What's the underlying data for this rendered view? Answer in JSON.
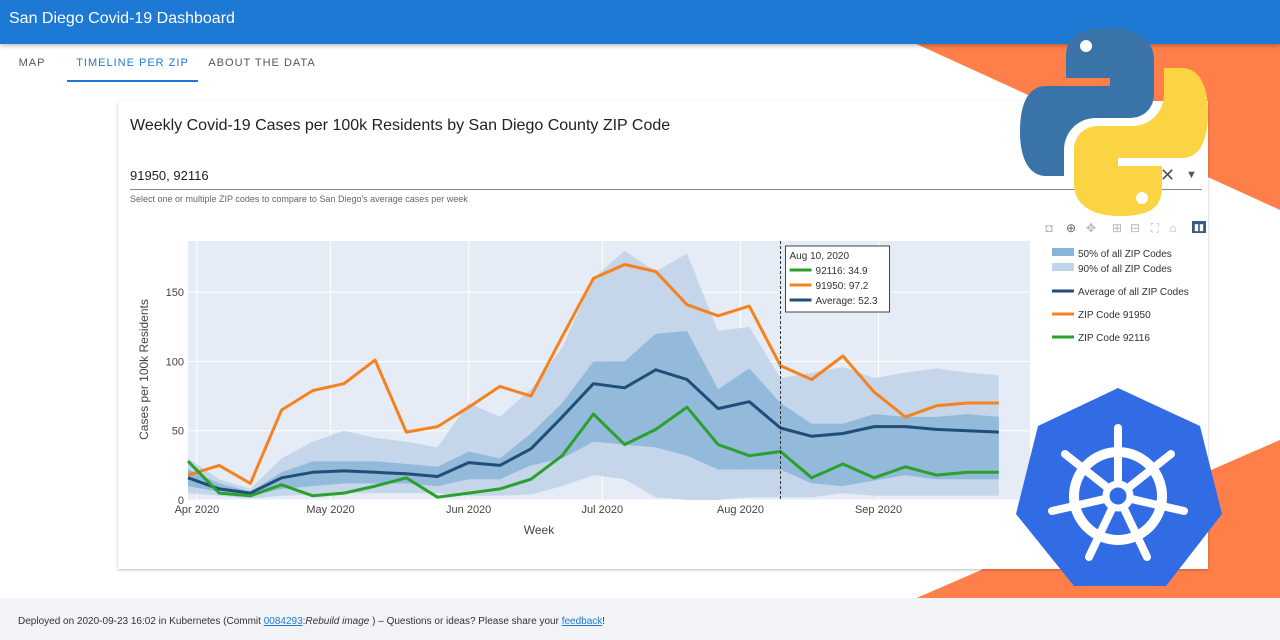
{
  "app": {
    "title": "San Diego Covid-19 Dashboard"
  },
  "tabs": [
    {
      "label": "MAP",
      "active": false
    },
    {
      "label": "TIMELINE PER ZIP",
      "active": true
    },
    {
      "label": "ABOUT THE DATA",
      "active": false
    }
  ],
  "card": {
    "title": "Weekly Covid-19 Cases per 100k Residents by San Diego County ZIP Code",
    "zip_select": {
      "value": "91950, 92116",
      "helper": "Select one or multiple ZIP codes to compare to San Diego's average cases per week"
    }
  },
  "modebar_icons": [
    "camera-icon",
    "zoom-icon",
    "pan-icon",
    "zoom-in-icon",
    "zoom-out-icon",
    "autoscale-icon",
    "reset-axes-icon",
    "plotly-logo-icon"
  ],
  "chart_data": {
    "type": "line",
    "title": "",
    "xlabel": "Week",
    "ylabel": "Cases per 100k Residents",
    "x_ticks": [
      "Apr 2020",
      "May 2020",
      "Jun 2020",
      "Jul 2020",
      "Aug 2020",
      "Sep 2020"
    ],
    "y_ticks": [
      0,
      50,
      100,
      150
    ],
    "ylim": [
      0,
      187
    ],
    "grid": true,
    "legend_position": "right",
    "x": [
      "2020-03-30",
      "2020-04-06",
      "2020-04-13",
      "2020-04-20",
      "2020-04-27",
      "2020-05-04",
      "2020-05-11",
      "2020-05-18",
      "2020-05-25",
      "2020-06-01",
      "2020-06-08",
      "2020-06-15",
      "2020-06-22",
      "2020-06-29",
      "2020-07-06",
      "2020-07-13",
      "2020-07-20",
      "2020-07-27",
      "2020-08-03",
      "2020-08-10",
      "2020-08-17",
      "2020-08-24",
      "2020-08-31",
      "2020-09-07",
      "2020-09-14",
      "2020-09-21",
      "2020-09-28"
    ],
    "bands": [
      {
        "name": "90% of all ZIP Codes",
        "color": "#c1d4ea",
        "lower": [
          5,
          3,
          1,
          3,
          4,
          5,
          5,
          5,
          5,
          3,
          3,
          4,
          10,
          18,
          15,
          2,
          0,
          0,
          2,
          2,
          2,
          5,
          3,
          3,
          3,
          3,
          3
        ],
        "upper": [
          30,
          15,
          8,
          30,
          42,
          50,
          45,
          42,
          38,
          70,
          60,
          80,
          110,
          160,
          180,
          165,
          178,
          122,
          125,
          88,
          92,
          96,
          88,
          92,
          95,
          92,
          90
        ]
      },
      {
        "name": "50% of all ZIP Codes",
        "color": "#89b4d8",
        "lower": [
          10,
          6,
          3,
          8,
          10,
          12,
          12,
          12,
          10,
          15,
          15,
          25,
          30,
          42,
          40,
          38,
          32,
          22,
          22,
          22,
          12,
          10,
          14,
          18,
          15,
          15,
          15
        ],
        "upper": [
          22,
          12,
          6,
          20,
          28,
          28,
          28,
          26,
          24,
          35,
          30,
          48,
          70,
          100,
          100,
          120,
          122,
          80,
          95,
          70,
          55,
          55,
          62,
          60,
          60,
          62,
          60
        ]
      }
    ],
    "series": [
      {
        "name": "Average of all ZIP Codes",
        "color": "#1f4e79",
        "values": [
          16,
          8,
          5,
          16,
          20,
          21,
          20,
          19,
          17,
          27,
          25,
          37,
          60,
          84,
          81,
          94,
          87,
          66,
          71,
          52,
          46,
          48,
          53,
          53,
          51,
          50,
          49
        ]
      },
      {
        "name": "ZIP Code 91950",
        "color": "#f5821f",
        "values": [
          18,
          25,
          12,
          65,
          79,
          84,
          101,
          49,
          53,
          67,
          82,
          75,
          118,
          160,
          170,
          165,
          141,
          133,
          140,
          97,
          87,
          104,
          78,
          60,
          68,
          70,
          70
        ]
      },
      {
        "name": "ZIP Code 92116",
        "color": "#2ca02c",
        "values": [
          28,
          5,
          3,
          11,
          3,
          5,
          10,
          16,
          2,
          5,
          8,
          15,
          32,
          62,
          40,
          51,
          67,
          40,
          32,
          35,
          16,
          26,
          16,
          24,
          18,
          20,
          20
        ]
      }
    ],
    "legend": [
      "50% of all ZIP Codes",
      "90% of all ZIP Codes",
      "Average of all ZIP Codes",
      "ZIP Code 91950",
      "ZIP Code 92116"
    ],
    "hover": {
      "date_label": "Aug 10, 2020",
      "x_index": 19,
      "rows": [
        {
          "text": "92116: 34.9",
          "color": "#2ca02c"
        },
        {
          "text": "91950: 97.2",
          "color": "#f5821f"
        },
        {
          "text": "Average: 52.3",
          "color": "#1f4e79"
        }
      ]
    }
  },
  "footer": {
    "prefix": "Deployed on 2020-09-23 16:02 in Kubernetes (Commit ",
    "commit_link": "0084293",
    "commit_msg": "Rebuild image",
    "middle": " ) – Questions or ideas? Please share your ",
    "feedback_link": "feedback",
    "suffix": "!"
  },
  "colors": {
    "appbar": "#1e79d4",
    "accent_orange": "#ff7f50",
    "python_blue": "#3a73a8",
    "python_yellow": "#fbd444",
    "kubernetes_blue": "#326ce5"
  }
}
